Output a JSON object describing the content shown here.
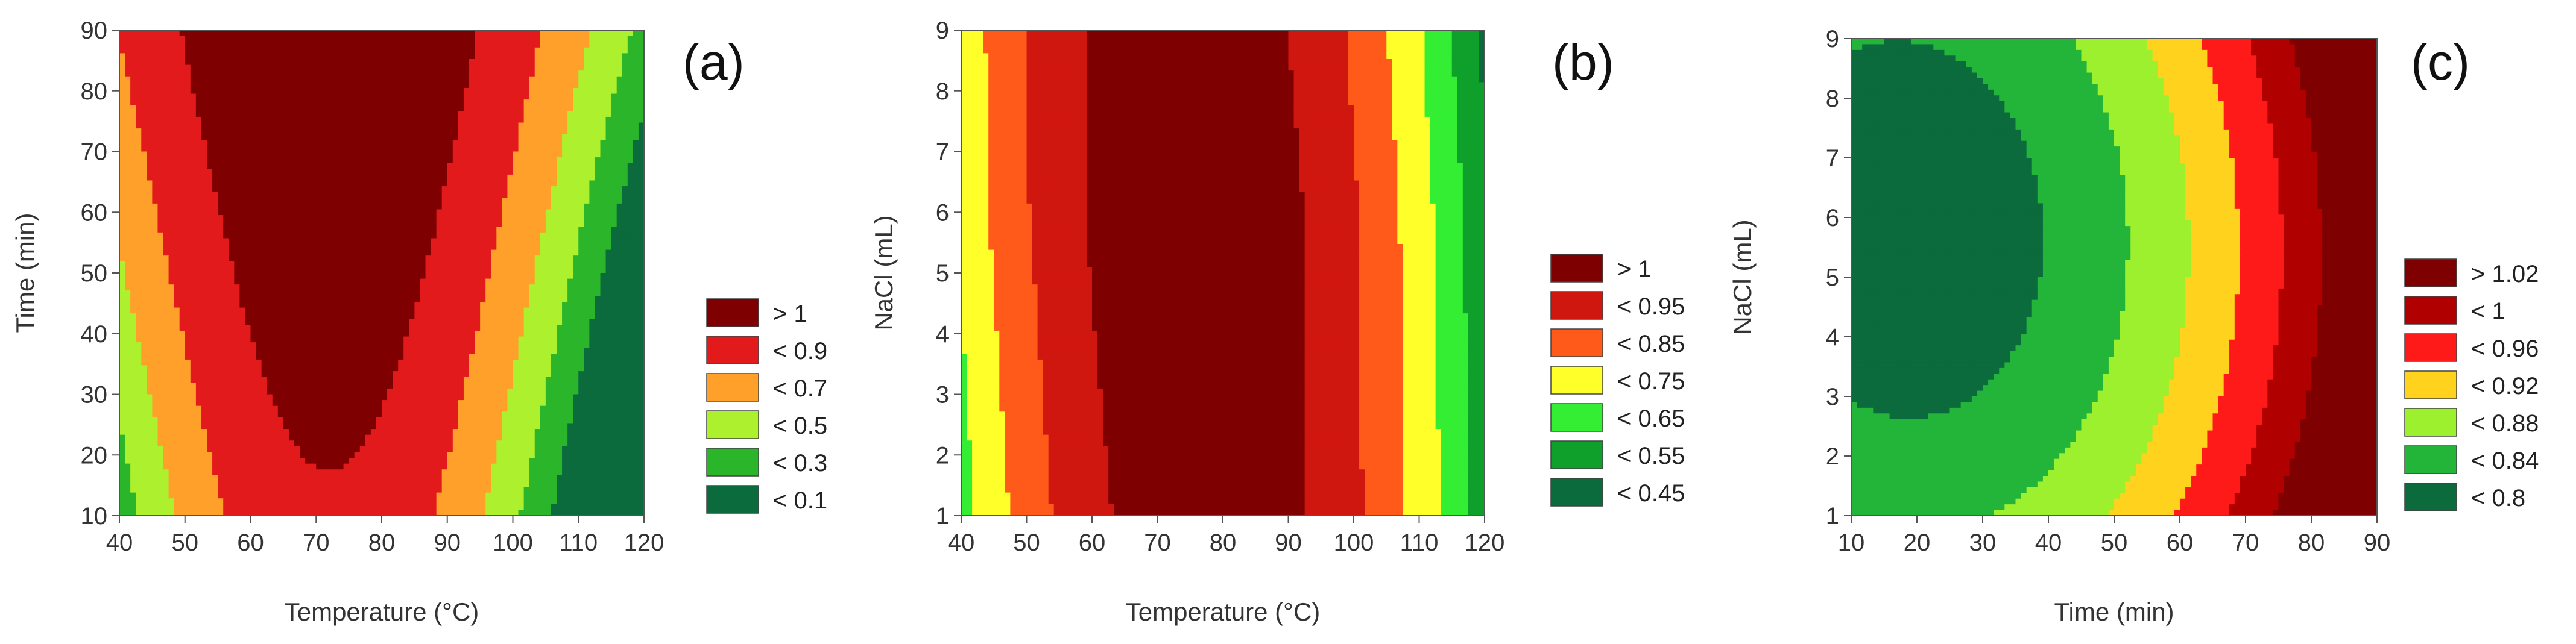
{
  "chart_data": [
    {
      "type": "heatmap",
      "panel_label": "(a)",
      "xlabel": "Temperature (°C)",
      "ylabel": "Time (min)",
      "xlim": [
        40,
        120
      ],
      "ylim": [
        10,
        90
      ],
      "xticks": [
        "40",
        "50",
        "60",
        "70",
        "80",
        "90",
        "100",
        "110",
        "120"
      ],
      "yticks": [
        "10",
        "20",
        "30",
        "40",
        "50",
        "60",
        "70",
        "80",
        "90"
      ],
      "legend": [
        {
          "label": "> 1",
          "color": "#7f0000"
        },
        {
          "label": "< 0.9",
          "color": "#e31a1c"
        },
        {
          "label": "< 0.7",
          "color": "#ffa02a"
        },
        {
          "label": "< 0.5",
          "color": "#adf02e"
        },
        {
          "label": "< 0.3",
          "color": "#2bb52b"
        },
        {
          "label": "< 0.1",
          "color": "#0b6b3d"
        }
      ],
      "thresholds": [
        0.1,
        0.3,
        0.5,
        0.7,
        0.9,
        1.0
      ]
    },
    {
      "type": "heatmap",
      "panel_label": "(b)",
      "xlabel": "Temperature (°C)",
      "ylabel": "NaCl (mL)",
      "xlim": [
        40,
        120
      ],
      "ylim": [
        1,
        9
      ],
      "xticks": [
        "40",
        "50",
        "60",
        "70",
        "80",
        "90",
        "100",
        "110",
        "120"
      ],
      "yticks": [
        "1",
        "2",
        "3",
        "4",
        "5",
        "6",
        "7",
        "8",
        "9"
      ],
      "legend": [
        {
          "label": "> 1",
          "color": "#7f0000"
        },
        {
          "label": "< 0.95",
          "color": "#d0170f"
        },
        {
          "label": "< 0.85",
          "color": "#ff5a1a"
        },
        {
          "label": "< 0.75",
          "color": "#ffff2a"
        },
        {
          "label": "< 0.65",
          "color": "#33ee33"
        },
        {
          "label": "< 0.55",
          "color": "#0fa02c"
        },
        {
          "label": "< 0.45",
          "color": "#0b6b3d"
        }
      ],
      "thresholds": [
        0.45,
        0.55,
        0.65,
        0.75,
        0.85,
        0.95,
        1.0
      ]
    },
    {
      "type": "heatmap",
      "panel_label": "(c)",
      "xlabel": "Time (min)",
      "ylabel": "NaCl (mL)",
      "xlim": [
        10,
        90
      ],
      "ylim": [
        1,
        9
      ],
      "xticks": [
        "10",
        "20",
        "30",
        "40",
        "50",
        "60",
        "70",
        "80",
        "90"
      ],
      "yticks": [
        "1",
        "2",
        "3",
        "4",
        "5",
        "6",
        "7",
        "8",
        "9"
      ],
      "legend": [
        {
          "label": "> 1.02",
          "color": "#7f0000"
        },
        {
          "label": "< 1",
          "color": "#b00000"
        },
        {
          "label": "< 0.96",
          "color": "#ff1a1a"
        },
        {
          "label": "< 0.92",
          "color": "#ffd21e"
        },
        {
          "label": "< 0.88",
          "color": "#9cf02e"
        },
        {
          "label": "< 0.84",
          "color": "#22b53a"
        },
        {
          "label": "< 0.8",
          "color": "#0b6b3d"
        }
      ],
      "thresholds": [
        0.8,
        0.84,
        0.88,
        0.92,
        0.96,
        1.0,
        1.02
      ]
    }
  ]
}
